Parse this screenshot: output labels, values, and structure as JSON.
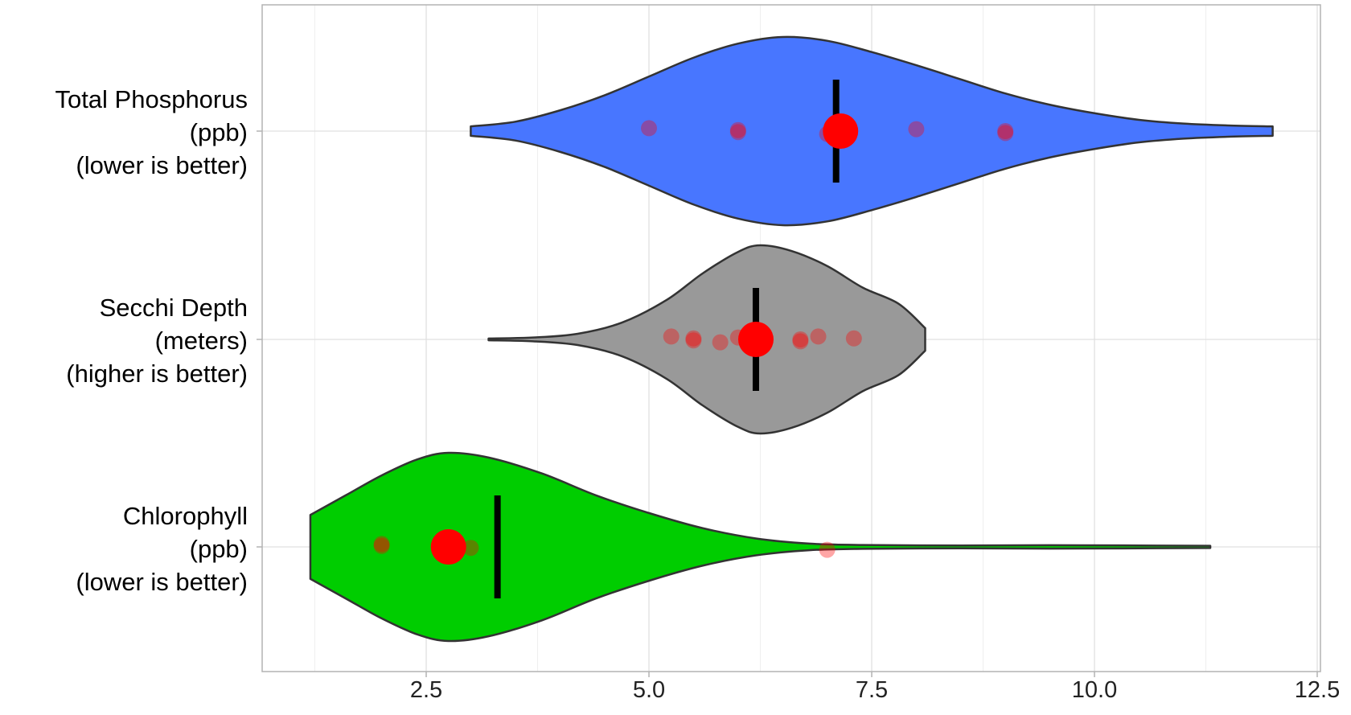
{
  "chart_data": {
    "type": "violin",
    "orientation": "horizontal",
    "xlim": [
      0.7,
      12.55
    ],
    "x_ticks": [
      "2.5",
      "5.0",
      "7.5",
      "10.0",
      "12.5"
    ],
    "x_tick_values": [
      2.5,
      5.0,
      7.5,
      10.0,
      12.5
    ],
    "x_minor_grid": [
      1.25,
      3.75,
      6.25,
      8.75,
      11.25
    ],
    "grid": true,
    "categories": [
      {
        "label_lines": [
          "Total Phosphorus",
          "(ppb)",
          "(lower is better)"
        ],
        "fill": "#4876FF",
        "density_profile": [
          [
            3.0,
            0.05
          ],
          [
            3.5,
            0.1
          ],
          [
            4.0,
            0.22
          ],
          [
            4.5,
            0.38
          ],
          [
            5.0,
            0.58
          ],
          [
            5.5,
            0.78
          ],
          [
            6.0,
            0.93
          ],
          [
            6.5,
            1.0
          ],
          [
            7.0,
            0.96
          ],
          [
            7.5,
            0.84
          ],
          [
            8.0,
            0.7
          ],
          [
            8.5,
            0.55
          ],
          [
            9.0,
            0.4
          ],
          [
            9.5,
            0.28
          ],
          [
            10.0,
            0.19
          ],
          [
            10.5,
            0.12
          ],
          [
            11.0,
            0.08
          ],
          [
            11.5,
            0.06
          ],
          [
            12.0,
            0.05
          ]
        ],
        "points": [
          5.0,
          6.0,
          6.0,
          7.0,
          8.0,
          9.0,
          9.0
        ],
        "mean": 7.15,
        "median": 7.1
      },
      {
        "label_lines": [
          "Secchi Depth",
          "(meters)",
          "(higher is better)"
        ],
        "fill": "#999999",
        "density_profile": [
          [
            3.2,
            0.01
          ],
          [
            3.7,
            0.02
          ],
          [
            4.2,
            0.06
          ],
          [
            4.7,
            0.18
          ],
          [
            5.2,
            0.42
          ],
          [
            5.6,
            0.7
          ],
          [
            6.0,
            0.93
          ],
          [
            6.25,
            1.0
          ],
          [
            6.6,
            0.94
          ],
          [
            7.0,
            0.78
          ],
          [
            7.4,
            0.55
          ],
          [
            7.8,
            0.38
          ],
          [
            8.1,
            0.12
          ]
        ],
        "points": [
          5.25,
          5.5,
          5.5,
          5.8,
          6.0,
          6.7,
          6.7,
          6.9,
          7.3
        ],
        "mean": 6.2,
        "median": 6.2
      },
      {
        "label_lines": [
          "Chlorophyll",
          "(ppb)",
          "(lower is better)"
        ],
        "fill": "#00CD00",
        "density_profile": [
          [
            1.2,
            0.34
          ],
          [
            1.6,
            0.55
          ],
          [
            2.0,
            0.76
          ],
          [
            2.4,
            0.93
          ],
          [
            2.75,
            1.0
          ],
          [
            3.2,
            0.95
          ],
          [
            3.8,
            0.78
          ],
          [
            4.4,
            0.55
          ],
          [
            5.0,
            0.36
          ],
          [
            5.6,
            0.2
          ],
          [
            6.2,
            0.09
          ],
          [
            6.8,
            0.035
          ],
          [
            7.4,
            0.02
          ],
          [
            8.5,
            0.015
          ],
          [
            9.5,
            0.018
          ],
          [
            10.5,
            0.015
          ],
          [
            11.3,
            0.012
          ]
        ],
        "points": [
          2.0,
          2.0,
          3.0,
          7.0
        ],
        "mean": 2.75,
        "median": 3.3
      }
    ],
    "point_color": "#FF0000",
    "mean_color": "#FF0000",
    "median_color": "#000000"
  }
}
